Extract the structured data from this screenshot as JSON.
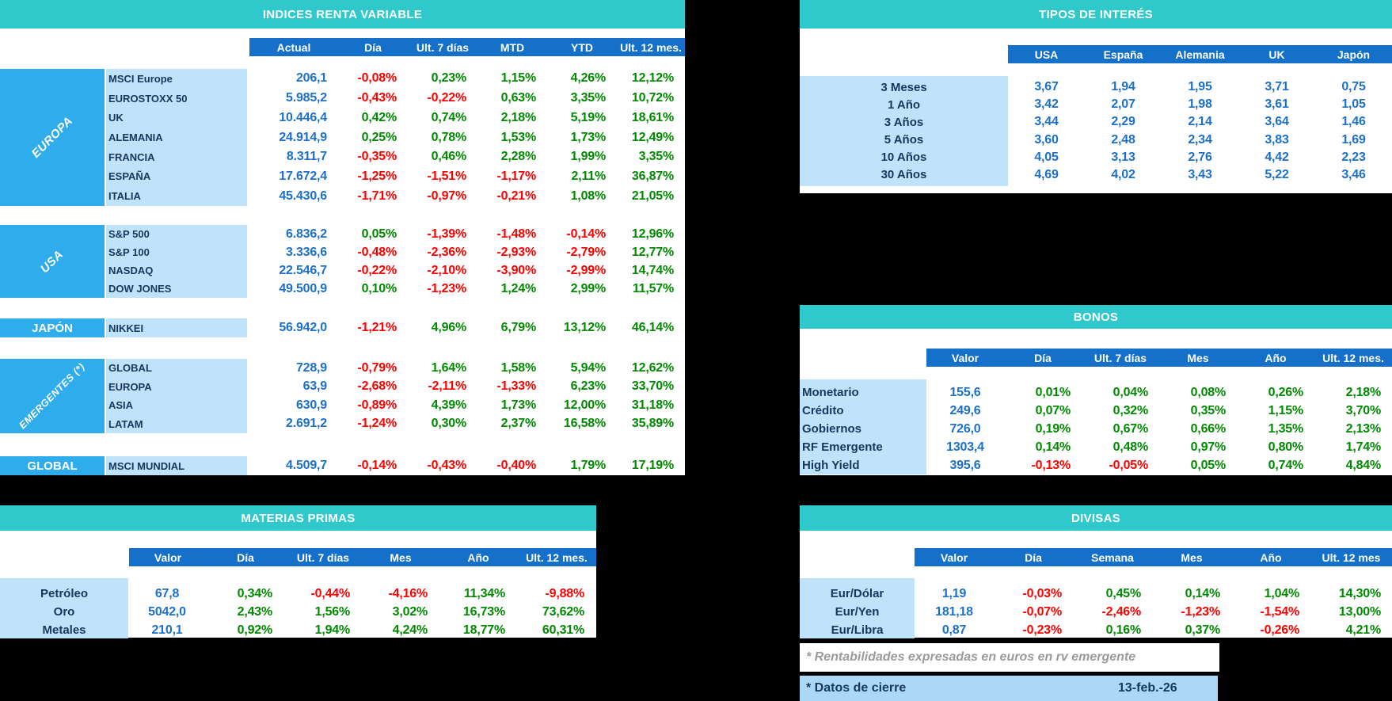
{
  "colors": {
    "background": "#000000",
    "teal_header": "#2fc9cb",
    "column_header_blue": "#1470c8",
    "category_azure": "#2facec",
    "label_light_blue": "#bee3fa",
    "value_blue": "#1c70c9",
    "positive_green": "#018a01",
    "negative_red": "#fd0000",
    "label_navy": "#17375e",
    "footer_bar_blue": "#abd9f5",
    "note_gray": "#9a9a9a"
  },
  "indices": {
    "title": "INDICES RENTA VARIABLE",
    "columns": [
      "Actual",
      "Día",
      "Ult. 7 días",
      "MTD",
      "YTD",
      "Ult. 12 mes."
    ],
    "sections": [
      {
        "category": "EUROPA",
        "rows": [
          {
            "label": "MSCI Europe",
            "values": [
              "206,1",
              "-0,08%",
              "0,23%",
              "1,15%",
              "4,26%",
              "12,12%"
            ]
          },
          {
            "label": "EUROSTOXX 50",
            "values": [
              "5.985,2",
              "-0,43%",
              "-0,22%",
              "0,63%",
              "3,35%",
              "10,72%"
            ]
          },
          {
            "label": "UK",
            "values": [
              "10.446,4",
              "0,42%",
              "0,74%",
              "2,18%",
              "5,19%",
              "18,61%"
            ]
          },
          {
            "label": "ALEMANIA",
            "values": [
              "24.914,9",
              "0,25%",
              "0,78%",
              "1,53%",
              "1,73%",
              "12,49%"
            ]
          },
          {
            "label": "FRANCIA",
            "values": [
              "8.311,7",
              "-0,35%",
              "0,46%",
              "2,28%",
              "1,99%",
              "3,35%"
            ]
          },
          {
            "label": "ESPAÑA",
            "values": [
              "17.672,4",
              "-1,25%",
              "-1,51%",
              "-1,17%",
              "2,11%",
              "36,87%"
            ]
          },
          {
            "label": "ITALIA",
            "values": [
              "45.430,6",
              "-1,71%",
              "-0,97%",
              "-0,21%",
              "1,08%",
              "21,05%"
            ]
          }
        ]
      },
      {
        "category": "USA",
        "rows": [
          {
            "label": "S&P 500",
            "values": [
              "6.836,2",
              "0,05%",
              "-1,39%",
              "-1,48%",
              "-0,14%",
              "12,96%"
            ]
          },
          {
            "label": "S&P 100",
            "values": [
              "3.336,6",
              "-0,48%",
              "-2,36%",
              "-2,93%",
              "-2,79%",
              "12,77%"
            ]
          },
          {
            "label": "NASDAQ",
            "values": [
              "22.546,7",
              "-0,22%",
              "-2,10%",
              "-3,90%",
              "-2,99%",
              "14,74%"
            ]
          },
          {
            "label": "DOW JONES",
            "values": [
              "49.500,9",
              "0,10%",
              "-1,23%",
              "1,24%",
              "2,99%",
              "11,57%"
            ]
          }
        ]
      },
      {
        "category": "JAPÓN",
        "rows": [
          {
            "label": "NIKKEI",
            "values": [
              "56.942,0",
              "-1,21%",
              "4,96%",
              "6,79%",
              "13,12%",
              "46,14%"
            ]
          }
        ]
      },
      {
        "category": "EMERGENTES (*)",
        "rows": [
          {
            "label": "GLOBAL",
            "values": [
              "728,9",
              "-0,79%",
              "1,64%",
              "1,58%",
              "5,94%",
              "12,62%"
            ]
          },
          {
            "label": "EUROPA",
            "values": [
              "63,9",
              "-2,68%",
              "-2,11%",
              "-1,33%",
              "6,23%",
              "33,70%"
            ]
          },
          {
            "label": "ASIA",
            "values": [
              "630,9",
              "-0,89%",
              "4,39%",
              "1,73%",
              "12,00%",
              "31,18%"
            ]
          },
          {
            "label": "LATAM",
            "values": [
              "2.691,2",
              "-1,24%",
              "0,30%",
              "2,37%",
              "16,58%",
              "35,89%"
            ]
          }
        ]
      },
      {
        "category": "GLOBAL",
        "rows": [
          {
            "label": "MSCI MUNDIAL",
            "values": [
              "4.509,7",
              "-0,14%",
              "-0,43%",
              "-0,40%",
              "1,79%",
              "17,19%"
            ]
          }
        ]
      }
    ]
  },
  "tipos": {
    "title": "TIPOS DE INTERÉS",
    "columns": [
      "USA",
      "España",
      "Alemania",
      "UK",
      "Japón"
    ],
    "rows": [
      {
        "label": "3 Meses",
        "values": [
          "3,67",
          "1,94",
          "1,95",
          "3,71",
          "0,75"
        ]
      },
      {
        "label": "1 Año",
        "values": [
          "3,42",
          "2,07",
          "1,98",
          "3,61",
          "1,05"
        ]
      },
      {
        "label": "3 Años",
        "values": [
          "3,44",
          "2,29",
          "2,14",
          "3,64",
          "1,46"
        ]
      },
      {
        "label": "5 Años",
        "values": [
          "3,60",
          "2,48",
          "2,34",
          "3,83",
          "1,69"
        ]
      },
      {
        "label": "10 Años",
        "values": [
          "4,05",
          "3,13",
          "2,76",
          "4,42",
          "2,23"
        ]
      },
      {
        "label": "30 Años",
        "values": [
          "4,69",
          "4,02",
          "3,43",
          "5,22",
          "3,46"
        ]
      }
    ]
  },
  "bonos": {
    "title": "BONOS",
    "columns": [
      "Valor",
      "Día",
      "Ult. 7 días",
      "Mes",
      "Año",
      "Ult. 12 mes."
    ],
    "rows": [
      {
        "label": "Monetario",
        "values": [
          "155,6",
          "0,01%",
          "0,04%",
          "0,08%",
          "0,26%",
          "2,18%"
        ]
      },
      {
        "label": "Crédito",
        "values": [
          "249,6",
          "0,07%",
          "0,32%",
          "0,35%",
          "1,15%",
          "3,70%"
        ]
      },
      {
        "label": "Gobiernos",
        "values": [
          "726,0",
          "0,19%",
          "0,67%",
          "0,66%",
          "1,35%",
          "2,13%"
        ]
      },
      {
        "label": "RF Emergente",
        "values": [
          "1303,4",
          "0,14%",
          "0,48%",
          "0,97%",
          "0,80%",
          "1,74%"
        ]
      },
      {
        "label": "High Yield",
        "values": [
          "395,6",
          "-0,13%",
          "-0,05%",
          "0,05%",
          "0,74%",
          "4,84%"
        ]
      }
    ]
  },
  "materias": {
    "title": "MATERIAS PRIMAS",
    "columns": [
      "Valor",
      "Día",
      "Ult. 7 días",
      "Mes",
      "Año",
      "Ult. 12 mes."
    ],
    "rows": [
      {
        "label": "Petróleo",
        "values": [
          "67,8",
          "0,34%",
          "-0,44%",
          "-4,16%",
          "11,34%",
          "-9,88%"
        ]
      },
      {
        "label": "Oro",
        "values": [
          "5042,0",
          "2,43%",
          "1,56%",
          "3,02%",
          "16,73%",
          "73,62%"
        ]
      },
      {
        "label": "Metales",
        "values": [
          "210,1",
          "0,92%",
          "1,94%",
          "4,24%",
          "18,77%",
          "60,31%"
        ]
      }
    ]
  },
  "divisas": {
    "title": "DIVISAS",
    "columns": [
      "Valor",
      "Día",
      "Semana",
      "Mes",
      "Año",
      "Ult. 12 mes"
    ],
    "rows": [
      {
        "label": "Eur/Dólar",
        "values": [
          "1,19",
          "-0,03%",
          "0,45%",
          "0,14%",
          "1,04%",
          "14,30%"
        ]
      },
      {
        "label": "Eur/Yen",
        "values": [
          "181,18",
          "-0,07%",
          "-2,46%",
          "-1,23%",
          "-1,54%",
          "13,00%"
        ]
      },
      {
        "label": "Eur/Libra",
        "values": [
          "0,87",
          "-0,23%",
          "0,16%",
          "0,37%",
          "-0,26%",
          "4,21%"
        ]
      }
    ]
  },
  "notes": {
    "emergentes_note": "* Rentabilidades expresadas en euros en rv emergente",
    "cierre_label": "* Datos de cierre",
    "cierre_date": "13-feb.-26"
  }
}
